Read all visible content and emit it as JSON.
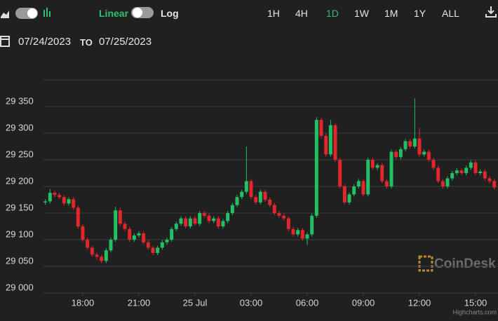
{
  "toolbar": {
    "linear": "Linear",
    "log": "Log",
    "ranges": [
      "1H",
      "4H",
      "1D",
      "1W",
      "1M",
      "1Y",
      "ALL"
    ]
  },
  "date_range": {
    "from": "07/24/2023",
    "to_label": "TO",
    "to": "07/25/2023"
  },
  "chart_data": {
    "type": "candlestick",
    "x": [
      "2023-07-24T16:00",
      "2023-07-24T16:15",
      "2023-07-24T16:30",
      "2023-07-24T16:45",
      "2023-07-24T17:00",
      "2023-07-24T17:15",
      "2023-07-24T17:30",
      "2023-07-24T17:45",
      "2023-07-24T18:00",
      "2023-07-24T18:15",
      "2023-07-24T18:30",
      "2023-07-24T18:45",
      "2023-07-24T19:00",
      "2023-07-24T19:15",
      "2023-07-24T19:30",
      "2023-07-24T19:45",
      "2023-07-24T20:00",
      "2023-07-24T20:15",
      "2023-07-24T20:30",
      "2023-07-24T20:45",
      "2023-07-24T21:00",
      "2023-07-24T21:15",
      "2023-07-24T21:30",
      "2023-07-24T21:45",
      "2023-07-24T22:00",
      "2023-07-24T22:15",
      "2023-07-24T22:30",
      "2023-07-24T22:45",
      "2023-07-24T23:00",
      "2023-07-24T23:15",
      "2023-07-24T23:30",
      "2023-07-24T23:45",
      "2023-07-25T00:00",
      "2023-07-25T00:15",
      "2023-07-25T00:30",
      "2023-07-25T00:45",
      "2023-07-25T01:00",
      "2023-07-25T01:15",
      "2023-07-25T01:30",
      "2023-07-25T01:45",
      "2023-07-25T02:00",
      "2023-07-25T02:15",
      "2023-07-25T02:30",
      "2023-07-25T02:45",
      "2023-07-25T03:00",
      "2023-07-25T03:15",
      "2023-07-25T03:30",
      "2023-07-25T03:45",
      "2023-07-25T04:00",
      "2023-07-25T04:15",
      "2023-07-25T04:30",
      "2023-07-25T04:45",
      "2023-07-25T05:00",
      "2023-07-25T05:15",
      "2023-07-25T05:30",
      "2023-07-25T05:45",
      "2023-07-25T06:00",
      "2023-07-25T06:15",
      "2023-07-25T06:30",
      "2023-07-25T06:45",
      "2023-07-25T07:00",
      "2023-07-25T07:15",
      "2023-07-25T07:30",
      "2023-07-25T07:45",
      "2023-07-25T08:00",
      "2023-07-25T08:15",
      "2023-07-25T08:30",
      "2023-07-25T08:45",
      "2023-07-25T09:00",
      "2023-07-25T09:15",
      "2023-07-25T09:30",
      "2023-07-25T09:45",
      "2023-07-25T10:00",
      "2023-07-25T10:15",
      "2023-07-25T10:30",
      "2023-07-25T10:45",
      "2023-07-25T11:00",
      "2023-07-25T11:15",
      "2023-07-25T11:30",
      "2023-07-25T11:45",
      "2023-07-25T12:00",
      "2023-07-25T12:15",
      "2023-07-25T12:30",
      "2023-07-25T12:45",
      "2023-07-25T13:00",
      "2023-07-25T13:15",
      "2023-07-25T13:30",
      "2023-07-25T13:45",
      "2023-07-25T14:00",
      "2023-07-25T14:15",
      "2023-07-25T14:30",
      "2023-07-25T14:45",
      "2023-07-25T15:00",
      "2023-07-25T15:15",
      "2023-07-25T15:30",
      "2023-07-25T15:45",
      "2023-07-25T16:00"
    ],
    "open": [
      29170,
      29172,
      29188,
      29184,
      29180,
      29168,
      29176,
      29160,
      29125,
      29100,
      29085,
      29072,
      29068,
      29060,
      29080,
      29100,
      29155,
      29130,
      29120,
      29100,
      29108,
      29112,
      29095,
      29085,
      29075,
      29085,
      29095,
      29100,
      29120,
      29130,
      29140,
      29125,
      29140,
      29130,
      29150,
      29145,
      29135,
      29140,
      29125,
      29135,
      29150,
      29165,
      29180,
      29190,
      29210,
      29180,
      29170,
      29190,
      29175,
      29165,
      29150,
      29145,
      29140,
      29120,
      29110,
      29118,
      29102,
      29110,
      29145,
      29325,
      29295,
      29260,
      29315,
      29250,
      29200,
      29170,
      29185,
      29200,
      29210,
      29185,
      29250,
      29235,
      29240,
      29210,
      29200,
      29265,
      29255,
      29270,
      29285,
      29275,
      29290,
      29260,
      29265,
      29250,
      29235,
      29210,
      29200,
      29215,
      29225,
      29230,
      29225,
      29235,
      29245,
      29225,
      29228,
      29215,
      29210
    ],
    "high": [
      29176,
      29195,
      29192,
      29188,
      29184,
      29180,
      29180,
      29164,
      29129,
      29104,
      29089,
      29076,
      29072,
      29084,
      29104,
      29162,
      29160,
      29134,
      29124,
      29112,
      29116,
      29116,
      29099,
      29089,
      29089,
      29099,
      29104,
      29124,
      29134,
      29144,
      29144,
      29144,
      29144,
      29154,
      29154,
      29149,
      29144,
      29144,
      29139,
      29154,
      29169,
      29184,
      29194,
      29275,
      29214,
      29184,
      29194,
      29194,
      29179,
      29169,
      29154,
      29149,
      29144,
      29124,
      29122,
      29122,
      29114,
      29149,
      29330,
      29329,
      29299,
      29325,
      29319,
      29254,
      29204,
      29189,
      29204,
      29214,
      29214,
      29254,
      29254,
      29244,
      29244,
      29214,
      29269,
      29269,
      29274,
      29289,
      29289,
      29365,
      29310,
      29269,
      29269,
      29254,
      29239,
      29214,
      29219,
      29229,
      29234,
      29234,
      29239,
      29249,
      29249,
      29232,
      29232,
      29219,
      29214
    ],
    "low": [
      29166,
      29168,
      29180,
      29176,
      29164,
      29164,
      29156,
      29121,
      29096,
      29081,
      29068,
      29062,
      29056,
      29056,
      29076,
      29096,
      29126,
      29116,
      29096,
      29096,
      29104,
      29091,
      29081,
      29071,
      29071,
      29081,
      29091,
      29096,
      29116,
      29126,
      29121,
      29121,
      29126,
      29126,
      29141,
      29131,
      29131,
      29121,
      29121,
      29131,
      29146,
      29161,
      29176,
      29186,
      29176,
      29166,
      29166,
      29171,
      29161,
      29146,
      29141,
      29136,
      29116,
      29106,
      29106,
      29098,
      29090,
      29106,
      29141,
      29291,
      29256,
      29256,
      29246,
      29196,
      29166,
      29166,
      29181,
      29196,
      29181,
      29181,
      29231,
      29231,
      29206,
      29196,
      29196,
      29251,
      29251,
      29266,
      29271,
      29271,
      29256,
      29256,
      29246,
      29231,
      29206,
      29196,
      29196,
      29211,
      29221,
      29221,
      29221,
      29231,
      29221,
      29221,
      29211,
      29206,
      29194
    ],
    "close": [
      29172,
      29188,
      29184,
      29180,
      29168,
      29176,
      29160,
      29125,
      29100,
      29085,
      29072,
      29068,
      29060,
      29080,
      29100,
      29155,
      29130,
      29120,
      29100,
      29108,
      29112,
      29095,
      29085,
      29075,
      29085,
      29095,
      29100,
      29120,
      29130,
      29140,
      29125,
      29140,
      29130,
      29150,
      29145,
      29135,
      29140,
      29125,
      29135,
      29150,
      29165,
      29180,
      29190,
      29210,
      29180,
      29170,
      29190,
      29175,
      29165,
      29150,
      29145,
      29140,
      29120,
      29110,
      29118,
      29102,
      29110,
      29145,
      29325,
      29295,
      29260,
      29315,
      29250,
      29200,
      29170,
      29185,
      29200,
      29210,
      29185,
      29250,
      29235,
      29240,
      29210,
      29200,
      29265,
      29255,
      29270,
      29285,
      29275,
      29290,
      29260,
      29265,
      29250,
      29235,
      29210,
      29200,
      29215,
      29225,
      29230,
      29225,
      29235,
      29245,
      29225,
      29228,
      29215,
      29210,
      29198
    ],
    "up_color": "#22c065",
    "down_color": "#e3262c",
    "xlim": [
      "2023-07-24T15:54",
      "2023-07-25T16:12"
    ],
    "xticks": [
      {
        "value": "2023-07-24T18:00",
        "label": "18:00"
      },
      {
        "value": "2023-07-24T21:00",
        "label": "21:00"
      },
      {
        "value": "2023-07-25T00:00",
        "label": "25 Jul"
      },
      {
        "value": "2023-07-25T03:00",
        "label": "03:00"
      },
      {
        "value": "2023-07-25T06:00",
        "label": "06:00"
      },
      {
        "value": "2023-07-25T09:00",
        "label": "09:00"
      },
      {
        "value": "2023-07-25T12:00",
        "label": "12:00"
      },
      {
        "value": "2023-07-25T15:00",
        "label": "15:00"
      }
    ],
    "ylim": [
      29000,
      29400
    ],
    "yticks": [
      {
        "value": 29000,
        "label": "29 000"
      },
      {
        "value": 29050,
        "label": "29 050"
      },
      {
        "value": 29100,
        "label": "29 100"
      },
      {
        "value": 29150,
        "label": "29 150"
      },
      {
        "value": 29200,
        "label": "29 200"
      },
      {
        "value": 29250,
        "label": "29 250"
      },
      {
        "value": 29300,
        "label": "29 300"
      },
      {
        "value": 29350,
        "label": "29 350"
      }
    ],
    "grid": true,
    "watermark": "CoinDesk",
    "credits": "Highcharts.com"
  }
}
